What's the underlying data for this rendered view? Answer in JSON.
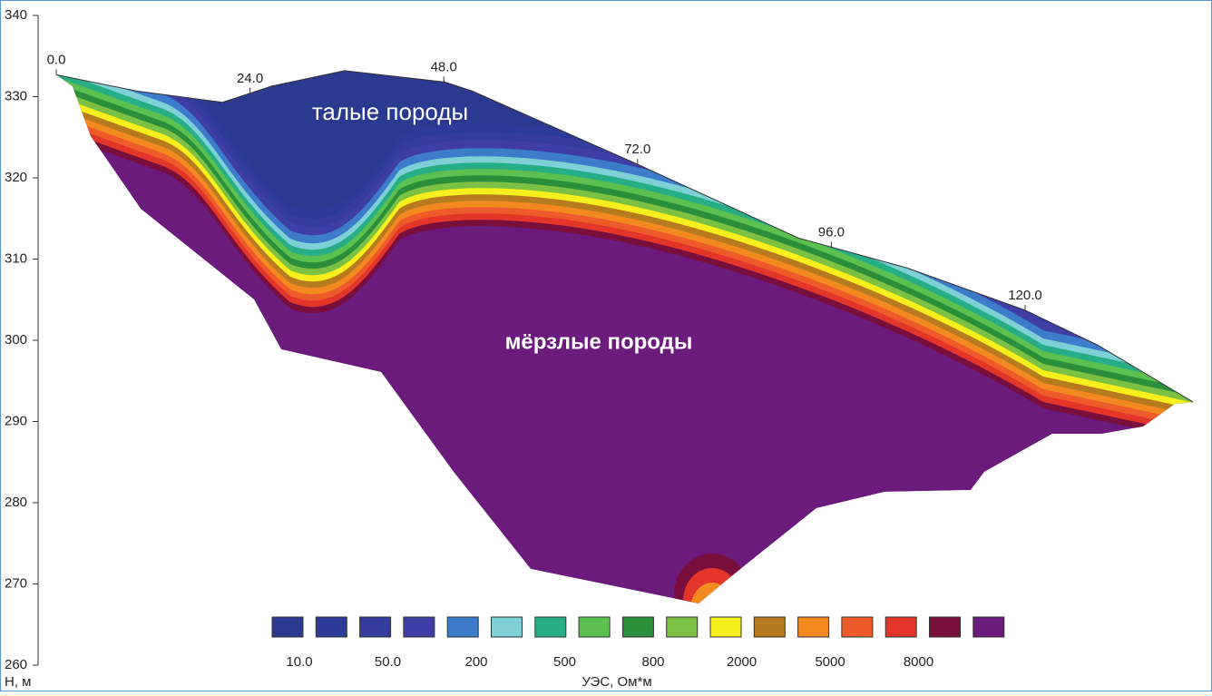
{
  "chart_data": {
    "type": "resistivity-section",
    "ylabel": "Н, м",
    "ylim": [
      260,
      340
    ],
    "yticks": [
      260,
      270,
      280,
      290,
      300,
      310,
      320,
      330,
      340
    ],
    "xticks": [
      {
        "value": 0,
        "label": "0.0"
      },
      {
        "value": 24,
        "label": "24.0"
      },
      {
        "value": 48,
        "label": "48.0"
      },
      {
        "value": 72,
        "label": "72.0"
      },
      {
        "value": 96,
        "label": "96.0"
      },
      {
        "value": 120,
        "label": "120.0"
      }
    ],
    "surface": {
      "x": [
        0,
        9.9,
        20.6,
        26.7,
        35.7,
        48.1,
        51.5,
        71.7,
        91.9,
        105.4,
        120.0,
        129.0,
        140.8
      ],
      "values": [
        332.7,
        330.7,
        329.3,
        331.3,
        333.2,
        331.8,
        330.7,
        321.8,
        312.6,
        308.9,
        303.7,
        299.4,
        292.4
      ]
    },
    "annotations": [
      "талые породы",
      "мёрзлые породы"
    ],
    "colorbar": {
      "title": "УЭС, Ом*м",
      "colors": [
        "#2b3990",
        "#2e3a9a",
        "#363ba0",
        "#3f3ea6",
        "#3d7bcb",
        "#7fd0d6",
        "#27ae87",
        "#5cc04f",
        "#2a8e3b",
        "#7cc143",
        "#f7ef1c",
        "#b87a1f",
        "#f28a1f",
        "#ef5a2a",
        "#e4352a",
        "#7a0f3d",
        "#6a1b7c"
      ],
      "labels": [
        "10.0",
        "50.0",
        "200",
        "500",
        "800",
        "2000",
        "5000",
        "8000"
      ]
    }
  }
}
